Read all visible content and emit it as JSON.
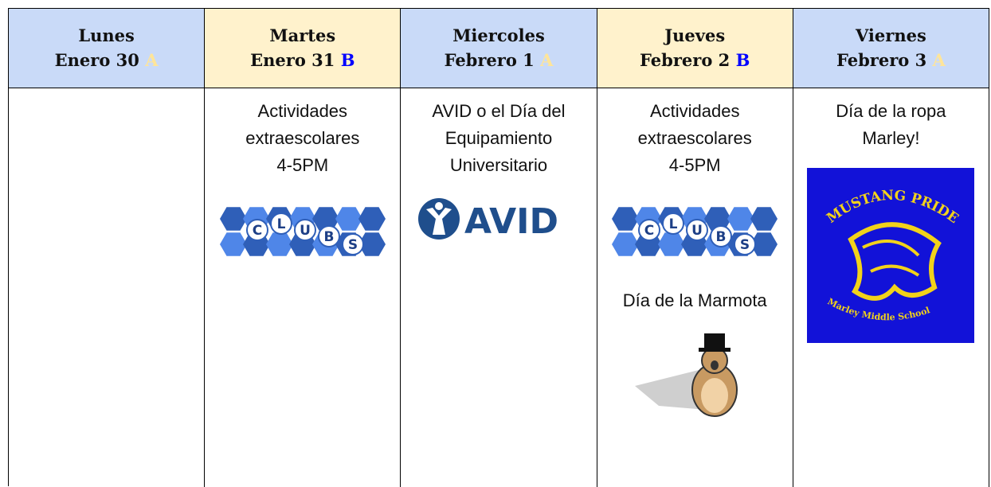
{
  "columns": [
    {
      "day": "Lunes",
      "date": "Enero 30",
      "letter": "A",
      "letter_color": "#ffe599",
      "header_color": "#c9daf8",
      "blocks": []
    },
    {
      "day": "Martes",
      "date": "Enero 31",
      "letter": "B",
      "letter_color": "#0000ff",
      "header_color": "#fff2cc",
      "blocks": [
        {
          "type": "text",
          "lines": [
            "Actividades",
            "extraescolares",
            "4-5PM"
          ]
        },
        {
          "type": "clubs",
          "letters": [
            "C",
            "L",
            "U",
            "B",
            "S"
          ]
        }
      ]
    },
    {
      "day": "Miercoles",
      "date": "Febrero 1",
      "letter": "A",
      "letter_color": "#ffe599",
      "header_color": "#c9daf8",
      "blocks": [
        {
          "type": "text",
          "lines": [
            "AVID o el Día del",
            "Equipamiento",
            "Universitario"
          ]
        },
        {
          "type": "avid",
          "label": "AVID"
        }
      ]
    },
    {
      "day": "Jueves",
      "date": "Febrero 2",
      "letter": "B",
      "letter_color": "#0000ff",
      "header_color": "#fff2cc",
      "blocks": [
        {
          "type": "text",
          "lines": [
            "Actividades",
            "extraescolares",
            "4-5PM"
          ]
        },
        {
          "type": "clubs",
          "letters": [
            "C",
            "L",
            "U",
            "B",
            "S"
          ]
        },
        {
          "type": "text",
          "lines": [
            "Día de la Marmota"
          ]
        },
        {
          "type": "groundhog"
        }
      ]
    },
    {
      "day": "Viernes",
      "date": "Febrero 3",
      "letter": "A",
      "letter_color": "#ffe599",
      "header_color": "#c9daf8",
      "blocks": [
        {
          "type": "text",
          "lines": [
            "Día de la ropa",
            "Marley!"
          ]
        },
        {
          "type": "mustang",
          "top_text": "MUSTANG PRIDE",
          "bottom_text": "Marley Middle School"
        }
      ]
    }
  ]
}
